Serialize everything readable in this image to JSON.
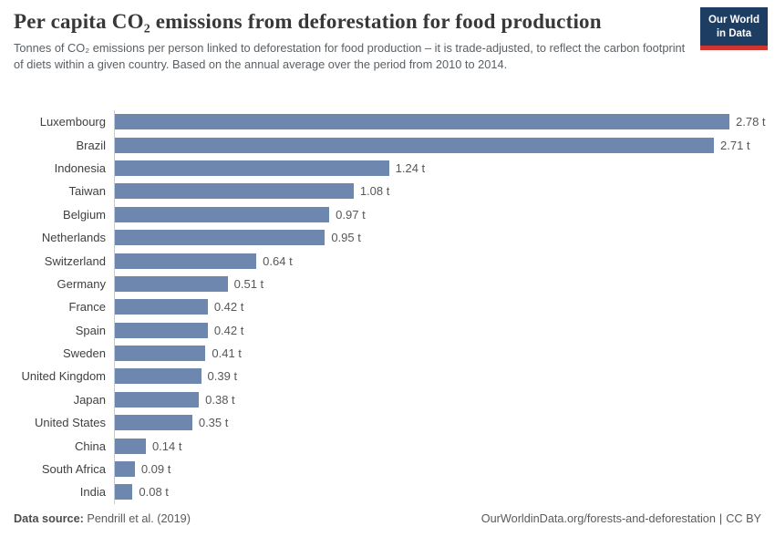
{
  "header": {
    "title": "Per capita CO₂ emissions from deforestation for food production",
    "subtitle": "Tonnes of CO₂ emissions per person linked to deforestation for food production – it is trade-adjusted, to reflect the carbon footprint of diets within a given country. Based on the annual average over the period from 2010 to 2014.",
    "logo": {
      "line1": "Our World",
      "line2": "in Data",
      "bg_color": "#1d3d63",
      "accent_color": "#d0342c"
    }
  },
  "chart_data": {
    "type": "bar",
    "orientation": "horizontal",
    "title": "Per capita CO₂ emissions from deforestation for food production",
    "xlabel": "",
    "ylabel": "",
    "unit": "t",
    "grid": false,
    "xlim": [
      0,
      2.78
    ],
    "bar_color": "#6d87ae",
    "categories": [
      "Luxembourg",
      "Brazil",
      "Indonesia",
      "Taiwan",
      "Belgium",
      "Netherlands",
      "Switzerland",
      "Germany",
      "France",
      "Spain",
      "Sweden",
      "United Kingdom",
      "Japan",
      "United States",
      "China",
      "South Africa",
      "India"
    ],
    "values": [
      2.78,
      2.71,
      1.24,
      1.08,
      0.97,
      0.95,
      0.64,
      0.51,
      0.42,
      0.42,
      0.41,
      0.39,
      0.38,
      0.35,
      0.14,
      0.09,
      0.08
    ],
    "value_labels": [
      "2.78 t",
      "2.71 t",
      "1.24 t",
      "1.08 t",
      "0.97 t",
      "0.95 t",
      "0.64 t",
      "0.51 t",
      "0.42 t",
      "0.42 t",
      "0.41 t",
      "0.39 t",
      "0.38 t",
      "0.35 t",
      "0.14 t",
      "0.09 t",
      "0.08 t"
    ]
  },
  "footer": {
    "source_label": "Data source:",
    "source_value": " Pendrill et al. (2019)",
    "url": "OurWorldinData.org/forests-and-deforestation",
    "separator": "|",
    "license": "CC BY"
  }
}
